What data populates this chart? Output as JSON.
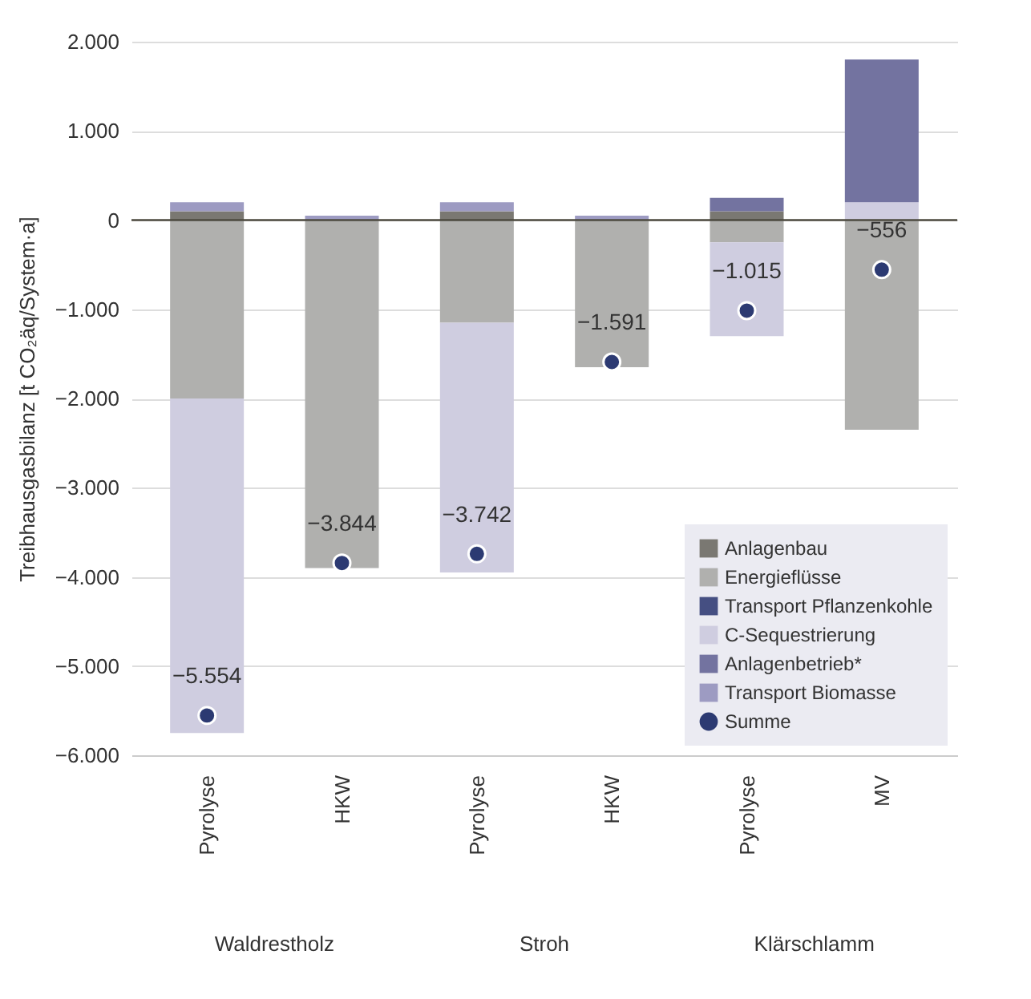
{
  "chart_data": {
    "type": "bar",
    "stacked": true,
    "ylabel": "Treibhausgasbilanz [t CO₂äq/System·a]",
    "categories": [
      "Pyrolyse",
      "HKW",
      "Pyrolyse",
      "HKW",
      "Pyrolyse",
      "MV"
    ],
    "series": [
      {
        "name": "Anlagenbau",
        "color": "#7a7872",
        "values": [
          100,
          0,
          100,
          0,
          100,
          0
        ]
      },
      {
        "name": "Energieflüsse",
        "color": "#b0b0ae",
        "values": [
          -2000,
          -3900,
          -1150,
          -1650,
          -250,
          -2350
        ]
      },
      {
        "name": "Transport Pflanzenkohle",
        "color": "#454f82",
        "values": [
          0,
          0,
          0,
          0,
          0,
          0
        ]
      },
      {
        "name": "C-Sequestrierung",
        "color": "#cfcde0",
        "values": [
          -3750,
          0,
          -2800,
          0,
          -1050,
          200
        ]
      },
      {
        "name": "Anlagenbetrieb*",
        "color": "#7373a0",
        "values": [
          0,
          0,
          0,
          0,
          150,
          1600
        ]
      },
      {
        "name": "Transport Biomasse",
        "color": "#9d9bc2",
        "values": [
          100,
          50,
          100,
          50,
          0,
          0
        ]
      },
      {
        "name": "Summe",
        "type": "scatter",
        "marker": "circle",
        "color": "#2c3a72",
        "values": [
          -5554,
          -3844,
          -3742,
          -1591,
          -1015,
          -556
        ],
        "value_labels": [
          "−5.554",
          "−3.844",
          "−3.742",
          "−1.591",
          "−1.015",
          "−556"
        ]
      }
    ],
    "ylim": [
      -6000,
      2000
    ],
    "yticks": [
      {
        "value": -6000,
        "label": "−6.000"
      },
      {
        "value": -5000,
        "label": "−5.000"
      },
      {
        "value": -4000,
        "label": "−4.000"
      },
      {
        "value": -3000,
        "label": "−3.000"
      },
      {
        "value": -2000,
        "label": "−2.000"
      },
      {
        "value": -1000,
        "label": "−1.000"
      },
      {
        "value": 0,
        "label": "0"
      },
      {
        "value": 1000,
        "label": "1.000"
      },
      {
        "value": 2000,
        "label": "2.000"
      }
    ],
    "grid": "y",
    "legend": "bottom right",
    "ref_lines": [
      {
        "axis": "y",
        "value": 0,
        "color": "#4d4a3f"
      }
    ],
    "annotations": [
      "Waldrestholz",
      "Stroh",
      "Klärschlamm"
    ]
  }
}
